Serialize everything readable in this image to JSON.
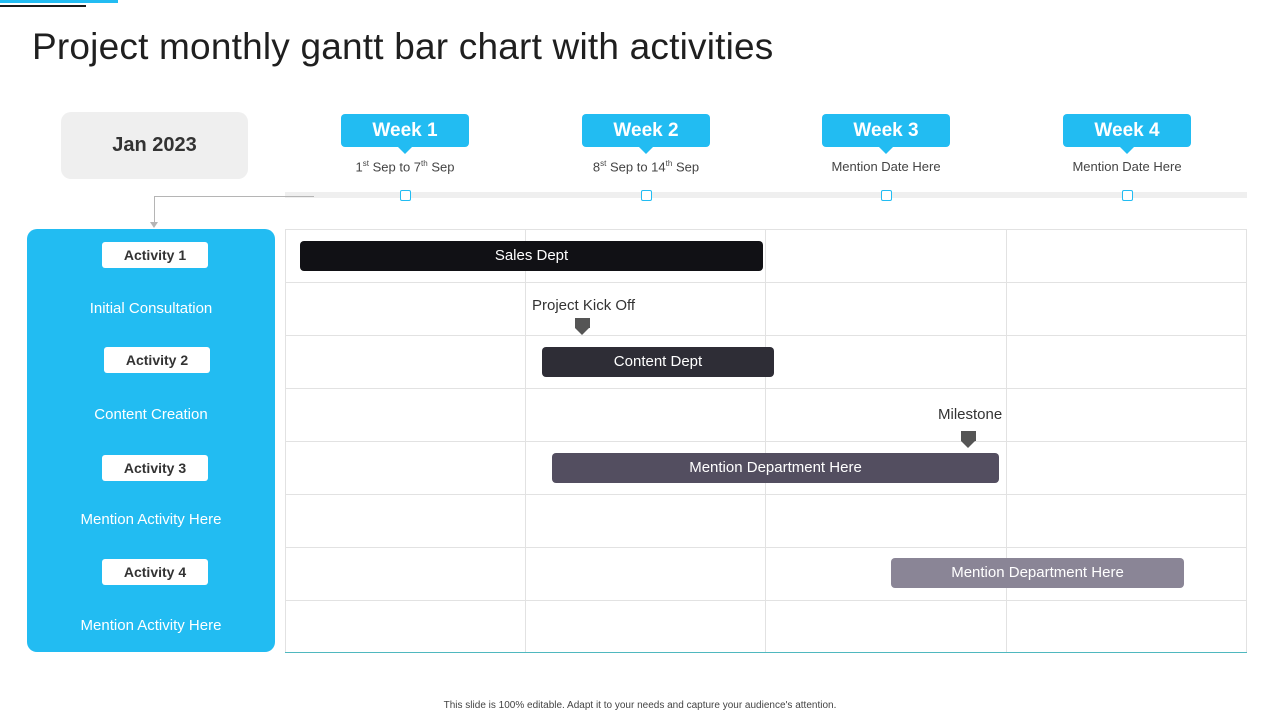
{
  "header": {
    "title": "Project monthly gantt bar chart with activities"
  },
  "month": "Jan 2023",
  "weeks": [
    {
      "label": "Week 1",
      "date_a": "1",
      "sup_a": "st",
      "mid": " Sep to 7",
      "sup_b": "th",
      "date_b": " Sep"
    },
    {
      "label": "Week 2",
      "date_a": "8",
      "sup_a": "st",
      "mid": " Sep to 14",
      "sup_b": "th",
      "date_b": " Sep"
    },
    {
      "label": "Week 3",
      "date": "Mention Date Here"
    },
    {
      "label": "Week 4",
      "date": "Mention Date Here"
    }
  ],
  "activities": [
    {
      "label": "Activity 1",
      "desc": "Initial Consultation"
    },
    {
      "label": "Activity 2",
      "desc": "Content Creation"
    },
    {
      "label": "Activity 3",
      "desc": "Mention Activity Here"
    },
    {
      "label": "Activity 4",
      "desc": "Mention Activity Here"
    }
  ],
  "bars": [
    {
      "label": "Sales Dept",
      "color": "#111115"
    },
    {
      "label": "Content Dept",
      "color": "#2e2d36"
    },
    {
      "label": "Mention Department Here",
      "color": "#534e60"
    },
    {
      "label": "Mention Department Here",
      "color": "#8a8596"
    }
  ],
  "markers": [
    {
      "label": "Project Kick Off"
    },
    {
      "label": "Milestone"
    }
  ],
  "footer": "This slide is 100% editable.  Adapt it to your needs and capture your audience's attention.",
  "colors": {
    "accent": "#22bcf2",
    "month_bg": "#efefef",
    "grid": "#e2e2e2",
    "marker": "#555555"
  }
}
